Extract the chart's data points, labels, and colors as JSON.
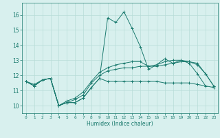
{
  "x": [
    0,
    1,
    2,
    3,
    4,
    5,
    6,
    7,
    8,
    9,
    10,
    11,
    12,
    13,
    14,
    15,
    16,
    17,
    18,
    19,
    20,
    21,
    22,
    23
  ],
  "line_main": [
    11.6,
    11.3,
    11.7,
    11.8,
    10.0,
    10.2,
    10.2,
    10.5,
    11.2,
    11.8,
    15.8,
    15.5,
    16.2,
    15.1,
    13.9,
    12.4,
    12.7,
    13.1,
    12.8,
    13.0,
    12.8,
    12.1,
    11.3,
    null
  ],
  "line_min": [
    11.6,
    11.3,
    11.7,
    11.8,
    10.0,
    10.2,
    10.2,
    10.5,
    11.2,
    11.8,
    11.6,
    11.6,
    11.6,
    11.6,
    11.6,
    11.6,
    11.6,
    11.5,
    11.5,
    11.5,
    11.5,
    11.4,
    11.3,
    11.2
  ],
  "line_avg": [
    11.6,
    11.3,
    11.7,
    11.8,
    10.0,
    10.2,
    10.4,
    10.7,
    11.5,
    12.0,
    12.3,
    12.4,
    12.5,
    12.5,
    12.6,
    12.6,
    12.6,
    12.7,
    12.8,
    12.9,
    12.9,
    12.8,
    12.1,
    11.3
  ],
  "line_max": [
    11.6,
    11.4,
    11.7,
    11.8,
    10.0,
    10.3,
    10.5,
    10.9,
    11.6,
    12.2,
    12.5,
    12.7,
    12.8,
    12.9,
    12.9,
    12.6,
    12.7,
    12.9,
    13.0,
    13.0,
    12.9,
    12.7,
    12.1,
    11.3
  ],
  "line_color": "#1a7a6e",
  "bg_color": "#d8f0ee",
  "grid_color": "#b8dcd8",
  "xlabel": "Humidex (Indice chaleur)",
  "ylim": [
    9.5,
    16.8
  ],
  "xlim": [
    -0.5,
    23.5
  ],
  "yticks": [
    10,
    11,
    12,
    13,
    14,
    15,
    16
  ]
}
